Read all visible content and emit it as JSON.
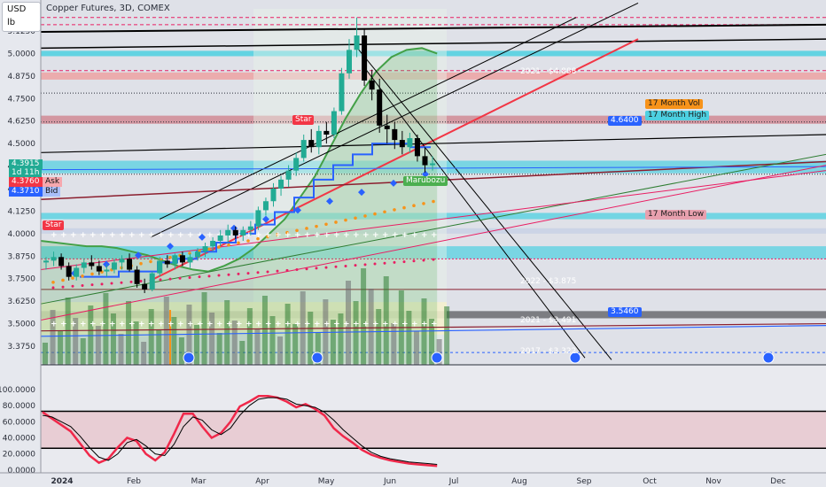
{
  "header": {
    "currency": "USD",
    "unit": "lb",
    "title": "Copper Futures, 3D, COMEX"
  },
  "price_panel": {
    "last_price": "4.3915",
    "countdown": "1d 11h",
    "ask_price": "4.3760",
    "ask_label": "Ask",
    "bid_price": "4.3710",
    "bid_label": "Bid"
  },
  "annotations": {
    "level_4888": "2021 - $4.888",
    "level_3875": "2022 - $3.875",
    "level_3491": "2021 - $3.491",
    "level_3322": "2017 - $3.322",
    "vol_label": "17 Month Vol",
    "high_label": "17 Month High",
    "high_price": "4.6400",
    "low_label": "17 Month Low",
    "blue_price": "3.5460",
    "star_label": "Star",
    "marker_label": "Marubozu"
  },
  "colors": {
    "up": "#22ab94",
    "down": "#000000",
    "ask": "#f23645",
    "bid": "#2962ff",
    "cyan_zone": "#4dd0e1",
    "red_zone": "#ef9a9a",
    "stoch_k": "#f0284a",
    "stoch_d": "#000000"
  },
  "chart_data": [
    {
      "type": "candlestick",
      "title": "Copper Futures, 3D, COMEX",
      "ylabel": "USD / lb",
      "ylim": [
        3.25,
        5.2
      ],
      "y_ticks": [
        "5.1250",
        "5.0000",
        "4.8750",
        "4.7500",
        "4.6250",
        "4.5000",
        "4.3750",
        "4.2500",
        "4.1250",
        "4.0000",
        "3.8750",
        "3.7500",
        "3.6250",
        "3.5000",
        "3.3750"
      ],
      "x_ticks": [
        "2024",
        "Feb",
        "Mar",
        "Apr",
        "May",
        "Jun",
        "Jul",
        "Aug",
        "Sep",
        "Oct",
        "Nov",
        "Dec"
      ],
      "ohlc": [
        [
          3.84,
          3.87,
          3.8,
          3.85
        ],
        [
          3.85,
          3.9,
          3.82,
          3.87
        ],
        [
          3.87,
          3.89,
          3.8,
          3.82
        ],
        [
          3.82,
          3.84,
          3.74,
          3.76
        ],
        [
          3.76,
          3.83,
          3.74,
          3.81
        ],
        [
          3.81,
          3.86,
          3.78,
          3.84
        ],
        [
          3.84,
          3.88,
          3.8,
          3.82
        ],
        [
          3.82,
          3.85,
          3.77,
          3.79
        ],
        [
          3.79,
          3.83,
          3.76,
          3.8
        ],
        [
          3.8,
          3.86,
          3.78,
          3.84
        ],
        [
          3.84,
          3.88,
          3.8,
          3.86
        ],
        [
          3.86,
          3.89,
          3.79,
          3.8
        ],
        [
          3.8,
          3.82,
          3.7,
          3.72
        ],
        [
          3.72,
          3.75,
          3.67,
          3.69
        ],
        [
          3.69,
          3.79,
          3.68,
          3.78
        ],
        [
          3.78,
          3.87,
          3.76,
          3.85
        ],
        [
          3.85,
          3.88,
          3.81,
          3.83
        ],
        [
          3.83,
          3.89,
          3.8,
          3.88
        ],
        [
          3.88,
          3.9,
          3.82,
          3.84
        ],
        [
          3.84,
          3.89,
          3.81,
          3.87
        ],
        [
          3.87,
          3.92,
          3.85,
          3.9
        ],
        [
          3.9,
          3.95,
          3.87,
          3.93
        ],
        [
          3.93,
          3.98,
          3.9,
          3.96
        ],
        [
          3.96,
          4.02,
          3.93,
          3.99
        ],
        [
          3.99,
          4.05,
          3.95,
          4.02
        ],
        [
          4.02,
          4.04,
          3.97,
          3.99
        ],
        [
          3.99,
          4.04,
          3.96,
          4.02
        ],
        [
          4.02,
          4.07,
          3.99,
          4.04
        ],
        [
          4.04,
          4.15,
          4.02,
          4.13
        ],
        [
          4.13,
          4.2,
          4.1,
          4.18
        ],
        [
          4.18,
          4.28,
          4.15,
          4.25
        ],
        [
          4.25,
          4.32,
          4.21,
          4.3
        ],
        [
          4.3,
          4.38,
          4.26,
          4.35
        ],
        [
          4.35,
          4.45,
          4.32,
          4.42
        ],
        [
          4.42,
          4.55,
          4.4,
          4.52
        ],
        [
          4.52,
          4.58,
          4.45,
          4.48
        ],
        [
          4.48,
          4.6,
          4.44,
          4.57
        ],
        [
          4.57,
          4.62,
          4.5,
          4.55
        ],
        [
          4.55,
          4.7,
          4.53,
          4.68
        ],
        [
          4.68,
          4.92,
          4.66,
          4.89
        ],
        [
          4.89,
          5.08,
          4.86,
          5.02
        ],
        [
          5.02,
          5.2,
          4.98,
          5.1
        ],
        [
          5.1,
          5.14,
          4.82,
          4.85
        ],
        [
          4.85,
          4.91,
          4.74,
          4.8
        ],
        [
          4.8,
          4.86,
          4.56,
          4.6
        ],
        [
          4.6,
          4.66,
          4.5,
          4.58
        ],
        [
          4.58,
          4.62,
          4.47,
          4.52
        ],
        [
          4.52,
          4.57,
          4.44,
          4.48
        ],
        [
          4.48,
          4.56,
          4.45,
          4.53
        ],
        [
          4.53,
          4.55,
          4.4,
          4.43
        ],
        [
          4.43,
          4.48,
          4.34,
          4.38
        ],
        [
          4.38,
          4.43,
          4.35,
          4.39
        ]
      ]
    },
    {
      "type": "line",
      "title": "Stochastic",
      "ylim": [
        0,
        100
      ],
      "y_ticks": [
        "100.0000",
        "80.0000",
        "60.0000",
        "40.0000",
        "20.0000",
        "0.0000"
      ],
      "overbought": 73,
      "oversold": 27,
      "series": [
        {
          "values": [
            72,
            64,
            56,
            48,
            33,
            18,
            9,
            14,
            28,
            40,
            36,
            20,
            12,
            22,
            45,
            70,
            70,
            54,
            40,
            46,
            60,
            79,
            85,
            92,
            92,
            90,
            85,
            78,
            82,
            76,
            68,
            52,
            42,
            34,
            25,
            19,
            15,
            12,
            10,
            8,
            7,
            6,
            5
          ]
        },
        {
          "values": [
            68,
            66,
            60,
            54,
            42,
            28,
            16,
            12,
            20,
            34,
            38,
            30,
            20,
            18,
            32,
            54,
            66,
            62,
            50,
            44,
            52,
            68,
            80,
            88,
            90,
            90,
            88,
            82,
            80,
            78,
            72,
            62,
            50,
            40,
            30,
            22,
            17,
            14,
            12,
            10,
            9,
            8,
            7
          ]
        }
      ]
    }
  ]
}
